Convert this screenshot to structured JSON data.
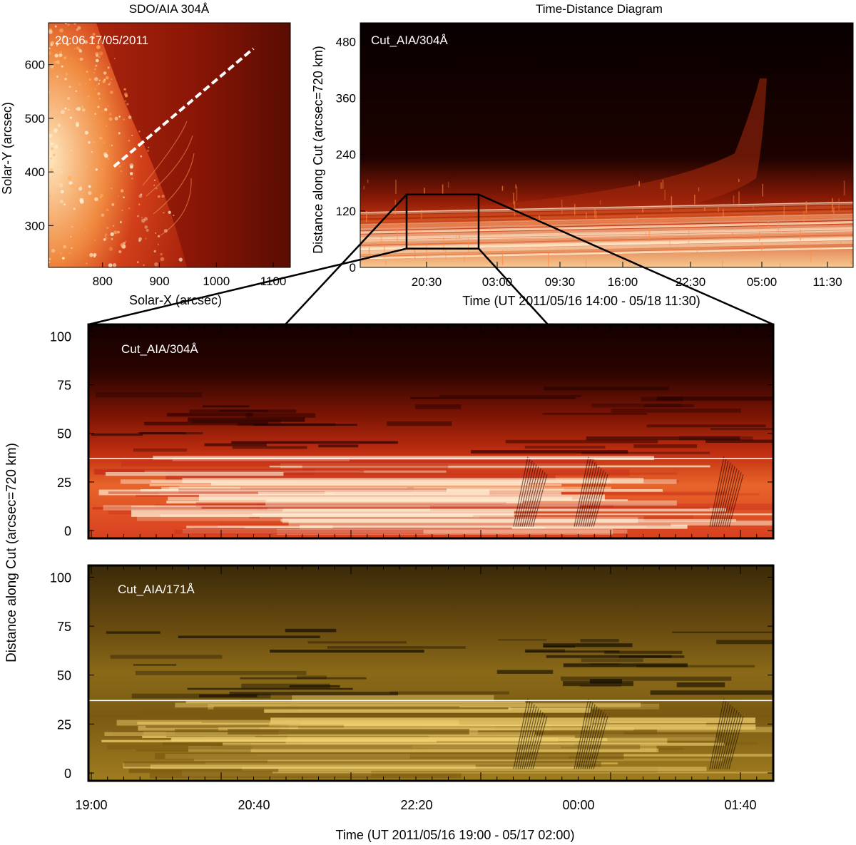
{
  "chart_data": [
    {
      "type": "heatmap",
      "title": "SDO/AIA 304Å",
      "annotation": "20:06 17/05/2011",
      "xlabel": "Solar-X (arcsec)",
      "ylabel": "Solar-Y (arcsec)",
      "xlim": [
        705,
        1130
      ],
      "ylim": [
        222,
        678
      ],
      "xticks": [
        800,
        900,
        1000,
        1100
      ],
      "yticks": [
        300,
        400,
        500,
        600
      ],
      "cut_line": {
        "x": [
          820,
          1065
        ],
        "y": [
          410,
          630
        ]
      },
      "colors": {
        "bright": "#ffe8c0",
        "mid": "#d2401a",
        "dark": "#3a0600"
      }
    },
    {
      "type": "heatmap",
      "title": "Time-Distance Diagram",
      "annotation": "Cut_AIA/304Å",
      "xlabel": "Time (UT 2011/05/16 14:00 - 05/18 11:30)",
      "ylabel": "Distance along Cut (arcsec=720 km)",
      "xticks": [
        "20:30",
        "03:00",
        "09:30",
        "16:00",
        "22:30",
        "05:00",
        "11:30"
      ],
      "yticks": [
        0,
        120,
        240,
        360,
        480
      ],
      "ylim": [
        0,
        520
      ],
      "zoom_box": {
        "x": [
          "19:00",
          "02:00"
        ],
        "y": [
          40,
          155
        ]
      }
    },
    {
      "type": "heatmap",
      "annotation": "Cut_AIA/304Å",
      "ylabel": "Distance along Cut (arcsec=720 km)",
      "yticks": [
        0,
        25,
        50,
        75,
        100
      ],
      "ylim": [
        -4,
        106
      ],
      "xlim": [
        "19:00",
        "02:00"
      ],
      "reference_line_y": 37,
      "colors": {
        "bright": "#fff2d8",
        "mid": "#c8301a",
        "dark": "#200000"
      }
    },
    {
      "type": "heatmap",
      "annotation": "Cut_AIA/171Å",
      "xlabel": "Time (UT 2011/05/16 19:00 - 05/17 02:00)",
      "ylabel": "Distance along Cut (arcsec=720 km)",
      "xticks": [
        "19:00",
        "20:40",
        "22:20",
        "00:00",
        "01:40"
      ],
      "yticks": [
        0,
        25,
        50,
        75,
        100
      ],
      "ylim": [
        -4,
        106
      ],
      "xlim": [
        "19:00",
        "02:00"
      ],
      "reference_line_y": 37,
      "colors": {
        "bright": "#f0d070",
        "mid": "#7a5a10",
        "dark": "#120c02"
      }
    }
  ]
}
